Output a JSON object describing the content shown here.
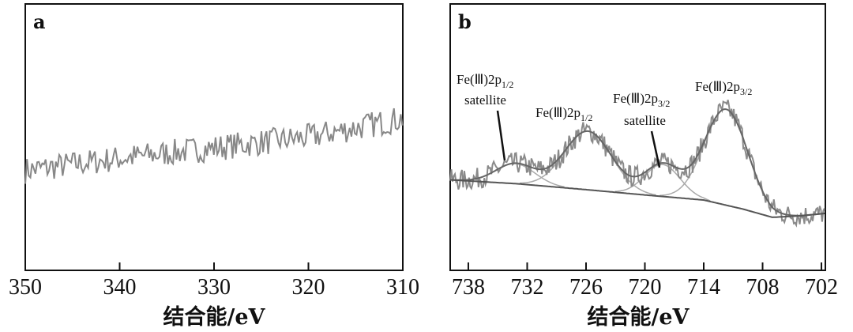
{
  "chart_data": [
    {
      "type": "line",
      "panel_label": "a",
      "title": "",
      "xlabel": "结合能/eV",
      "ylabel": "",
      "xlim": [
        350,
        310
      ],
      "ylim": [
        0,
        100
      ],
      "xticks": [
        "350",
        "340",
        "330",
        "320",
        "310"
      ],
      "xtick_values": [
        350,
        340,
        330,
        320,
        310
      ],
      "grid": false,
      "series": [
        {
          "name": "spectrum",
          "color": "#888888",
          "trend": {
            "x": [
              350,
              340,
              330,
              320,
              310
            ],
            "y": [
              37.5,
              42,
              46,
              50,
              57
            ]
          },
          "noise_amplitude": 5
        }
      ]
    },
    {
      "type": "line",
      "panel_label": "b",
      "title": "",
      "xlabel": "结合能/eV",
      "ylabel": "",
      "xlim": [
        739.85,
        701.6
      ],
      "ylim": [
        0,
        100
      ],
      "xticks": [
        "738",
        "732",
        "726",
        "720",
        "714",
        "708",
        "702"
      ],
      "xtick_values": [
        738,
        732,
        726,
        720,
        714,
        708,
        702
      ],
      "grid": false,
      "background": {
        "x": [
          740,
          733,
          726,
          720,
          714,
          710,
          707,
          704,
          701.6
        ],
        "y": [
          34,
          32.5,
          30.3,
          28.3,
          26.4,
          23,
          19.9,
          20.5,
          21.4
        ]
      },
      "peaks": [
        {
          "name": "Fe(Ⅲ)2p1/2 satellite",
          "center": 733.2,
          "amplitude": 7.5,
          "sigma": 2.0
        },
        {
          "name": "Fe(Ⅲ)2p1/2",
          "center": 725.8,
          "amplitude": 22,
          "sigma": 2.4
        },
        {
          "name": "Fe(Ⅲ)2p3/2 satellite",
          "center": 718.2,
          "amplitude": 12,
          "sigma": 1.8
        },
        {
          "name": "Fe(Ⅲ)2p3/2",
          "center": 711.7,
          "amplitude": 36,
          "sigma": 2.2
        }
      ],
      "raw_noise_amplitude": 4,
      "colors": {
        "raw": "#8a8a8a",
        "fit": "#666666",
        "component": "#aaaaaa",
        "background": "#555555"
      },
      "annotations": [
        {
          "main": "Fe(Ⅲ)2p",
          "sub": "1/2",
          "line2": "satellite"
        },
        {
          "main": "Fe(Ⅲ)2p",
          "sub": "1/2",
          "line2": ""
        },
        {
          "main": "Fe(Ⅲ)2p",
          "sub": "3/2",
          "line2": "satellite"
        },
        {
          "main": "Fe(Ⅲ)2p",
          "sub": "3/2",
          "line2": ""
        }
      ]
    }
  ]
}
